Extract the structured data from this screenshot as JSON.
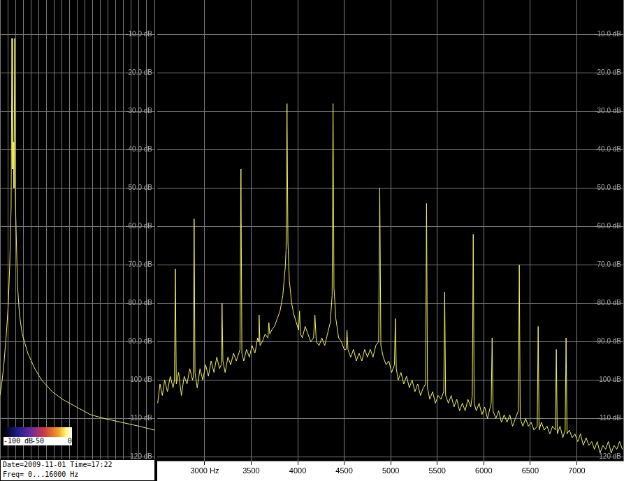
{
  "chart_data": [
    {
      "type": "line",
      "color": "#f2f25a",
      "line_style": "solid",
      "grid": true,
      "xlim": [
        2490,
        7500
      ],
      "xticks": [
        {
          "value": 3000,
          "label": "3000 Hz"
        },
        3500,
        4000,
        4500,
        5000,
        5500,
        6000,
        6500,
        7000
      ],
      "ylim": [
        -121,
        -1
      ],
      "yticks": [
        {
          "value": -10,
          "label": "-10.0 dB"
        },
        {
          "value": -20,
          "label": "-20.0 dB"
        },
        {
          "value": -30,
          "label": "-30.0 dB"
        },
        {
          "value": -40,
          "label": "-40.0 dB"
        },
        {
          "value": -50,
          "label": "-50.0 dB"
        },
        {
          "value": -60,
          "label": "-60.0 dB"
        },
        {
          "value": -70,
          "label": "-70.0 dB"
        },
        {
          "value": -80,
          "label": "-80.0 dB"
        },
        {
          "value": -90,
          "label": "-90.0 dB"
        },
        {
          "value": -100,
          "label": "-100 dB"
        },
        {
          "value": -110,
          "label": "-110 dB"
        },
        {
          "value": -120,
          "label": "-120 dB"
        }
      ],
      "x": [
        2495,
        2520,
        2545,
        2570,
        2600,
        2630,
        2660,
        2675,
        2685,
        2695,
        2720,
        2750,
        2780,
        2810,
        2840,
        2870,
        2878,
        2887,
        2896,
        2920,
        2950,
        2980,
        3010,
        3040,
        3070,
        3100,
        3130,
        3160,
        3178,
        3187,
        3196,
        3220,
        3250,
        3280,
        3310,
        3340,
        3380,
        3390,
        3400,
        3420,
        3450,
        3480,
        3510,
        3540,
        3570,
        3580,
        3585,
        3595,
        3620,
        3650,
        3680,
        3690,
        3700,
        3720,
        3750,
        3780,
        3810,
        3840,
        3865,
        3875,
        3885,
        3895,
        3910,
        3935,
        3960,
        3985,
        4010,
        4020,
        4030,
        4050,
        4080,
        4110,
        4140,
        4170,
        4185,
        4200,
        4230,
        4260,
        4290,
        4320,
        4350,
        4370,
        4380,
        4390,
        4410,
        4440,
        4470,
        4500,
        4520,
        4530,
        4540,
        4570,
        4600,
        4630,
        4660,
        4690,
        4720,
        4750,
        4780,
        4810,
        4840,
        4870,
        4882,
        4894,
        4920,
        4950,
        4980,
        5010,
        5040,
        5050,
        5060,
        5080,
        5110,
        5140,
        5170,
        5200,
        5230,
        5260,
        5290,
        5320,
        5350,
        5375,
        5385,
        5395,
        5420,
        5450,
        5480,
        5510,
        5540,
        5570,
        5580,
        5590,
        5620,
        5650,
        5680,
        5710,
        5740,
        5770,
        5800,
        5830,
        5860,
        5877,
        5887,
        5897,
        5920,
        5950,
        5980,
        6010,
        6040,
        6070,
        6080,
        6090,
        6100,
        6130,
        6160,
        6190,
        6220,
        6250,
        6280,
        6310,
        6340,
        6372,
        6382,
        6392,
        6420,
        6450,
        6480,
        6510,
        6540,
        6575,
        6585,
        6595,
        6620,
        6650,
        6680,
        6710,
        6740,
        6770,
        6780,
        6790,
        6820,
        6850,
        6875,
        6885,
        6895,
        6920,
        6950,
        6980,
        7010,
        7040,
        7070,
        7100,
        7130,
        7160,
        7190,
        7220,
        7250,
        7280,
        7310,
        7340,
        7370,
        7400,
        7430,
        7460,
        7490
      ],
      "values": [
        -106,
        -101,
        -104,
        -100,
        -103,
        -99,
        -102,
        -100,
        -71,
        -101,
        -98,
        -104,
        -99,
        -101,
        -97,
        -100,
        -99,
        -58,
        -98,
        -102,
        -97,
        -100,
        -96,
        -99,
        -95,
        -98,
        -94,
        -97,
        -96,
        -80,
        -95,
        -98,
        -94,
        -96,
        -93,
        -95,
        -92,
        -45,
        -93,
        -95,
        -92,
        -94,
        -91,
        -93,
        -89,
        -90,
        -83,
        -91,
        -90,
        -88,
        -89,
        -85,
        -88,
        -87,
        -86,
        -84,
        -82,
        -78,
        -71,
        -66,
        -28,
        -64,
        -74,
        -80,
        -83,
        -85,
        -87,
        -82,
        -88,
        -89,
        -86,
        -88,
        -90,
        -89,
        -83,
        -90,
        -91,
        -89,
        -91,
        -88,
        -85,
        -78,
        -28,
        -76,
        -84,
        -89,
        -90,
        -92,
        -92,
        -87,
        -92,
        -94,
        -92,
        -95,
        -93,
        -95,
        -92,
        -94,
        -92,
        -94,
        -91,
        -90,
        -50,
        -91,
        -94,
        -96,
        -95,
        -98,
        -96,
        -84,
        -97,
        -100,
        -98,
        -101,
        -99,
        -102,
        -100,
        -103,
        -101,
        -104,
        -102,
        -101,
        -54,
        -102,
        -105,
        -103,
        -106,
        -104,
        -105,
        -103,
        -77,
        -104,
        -106,
        -104,
        -107,
        -105,
        -108,
        -106,
        -108,
        -105,
        -107,
        -104,
        -62,
        -106,
        -108,
        -106,
        -109,
        -107,
        -110,
        -107,
        -106,
        -89,
        -108,
        -110,
        -108,
        -111,
        -109,
        -111,
        -109,
        -112,
        -110,
        -108,
        -70,
        -110,
        -112,
        -110,
        -112,
        -111,
        -113,
        -112,
        -86,
        -113,
        -111,
        -113,
        -112,
        -114,
        -112,
        -113,
        -92,
        -114,
        -112,
        -115,
        -113,
        -89,
        -114,
        -113,
        -115,
        -114,
        -116,
        -114,
        -117,
        -115,
        -117,
        -116,
        -118,
        -116,
        -119,
        -117,
        -118,
        -116,
        -119,
        -117,
        -118,
        -116,
        -118
      ]
    },
    {
      "type": "line",
      "color": "#f2f25a",
      "line_style": "solid",
      "grid": true,
      "tick_labels": "y",
      "xlim": [
        0,
        100
      ],
      "xticks": [
        0,
        5,
        10,
        15,
        20,
        25,
        30,
        35,
        40,
        45,
        50,
        55,
        60,
        65,
        70,
        75,
        80,
        85,
        90,
        95,
        100
      ],
      "ylim": [
        -121,
        -1
      ],
      "yticks": [
        {
          "value": -10,
          "label": "-10.0 dB"
        },
        {
          "value": -20,
          "label": "-20.0 dB"
        },
        {
          "value": -30,
          "label": "-30.0 dB"
        },
        {
          "value": -40,
          "label": "-40.0 dB"
        },
        {
          "value": -50,
          "label": "-50.0 dB"
        },
        {
          "value": -60,
          "label": "-60.0 dB"
        },
        {
          "value": -70,
          "label": "-70.0 dB"
        },
        {
          "value": -80,
          "label": "-80.0 dB"
        },
        {
          "value": -90,
          "label": "-90.0 dB"
        },
        {
          "value": -100,
          "label": "-100 dB"
        },
        {
          "value": -110,
          "label": "-110 dB"
        },
        {
          "value": -120,
          "label": "-120 dB"
        }
      ],
      "x": [
        0,
        1.4,
        2.7,
        4.1,
        5.4,
        6.3,
        7.2,
        7.7,
        8.1,
        8.6,
        9,
        9.5,
        9.9,
        11.3,
        12.6,
        14.4,
        18,
        22.5,
        27,
        33.8,
        40.5,
        49.5,
        58.6,
        67.6,
        78.8,
        90.1,
        100
      ],
      "values": [
        -104,
        -100,
        -95,
        -88,
        -80,
        -70,
        -55,
        -11,
        -45,
        -38,
        -50,
        -11,
        -52,
        -75,
        -83,
        -88,
        -93,
        -97,
        -100,
        -103,
        -105,
        -107,
        -109,
        -110,
        -111,
        -112,
        -113
      ],
      "colorbar": {
        "range": [
          -100,
          0
        ],
        "ticks": [
          {
            "value": -100,
            "label": "-100 dB"
          },
          -50,
          0
        ]
      },
      "annotations": [
        "Date=2009-11-01 Time=17:22",
        "Freq= 0...16000 Hz"
      ]
    }
  ]
}
